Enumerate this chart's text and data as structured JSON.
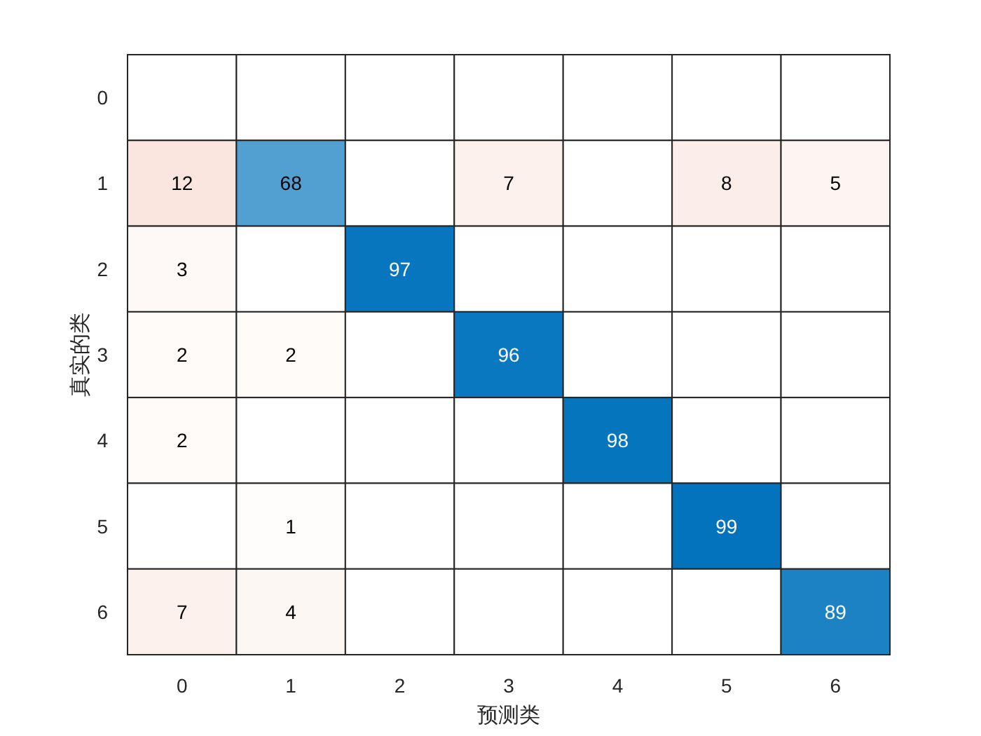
{
  "chart_data": {
    "type": "heatmap",
    "xlabel": "预测类",
    "ylabel": "真实的类",
    "categories": [
      "0",
      "1",
      "2",
      "3",
      "4",
      "5",
      "6"
    ],
    "y_categories": [
      "0",
      "1",
      "2",
      "3",
      "4",
      "5",
      "6"
    ],
    "cells": [
      [
        null,
        null,
        null,
        null,
        null,
        null,
        null
      ],
      [
        12,
        68,
        null,
        7,
        null,
        8,
        5
      ],
      [
        3,
        null,
        97,
        null,
        null,
        null,
        null
      ],
      [
        2,
        2,
        null,
        96,
        null,
        null,
        null
      ],
      [
        2,
        null,
        null,
        null,
        98,
        null,
        null
      ],
      [
        null,
        1,
        null,
        null,
        null,
        99,
        null
      ],
      [
        7,
        4,
        null,
        null,
        null,
        null,
        89
      ]
    ],
    "data_labels": true
  }
}
